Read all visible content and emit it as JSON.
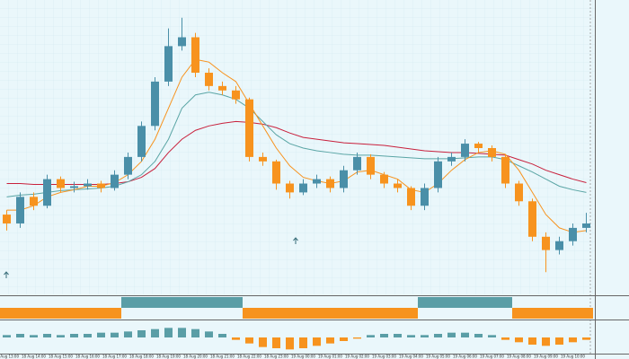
{
  "chart_data": {
    "type": "candlestick",
    "categories": [
      "18 Aug 13:00",
      null,
      "18 Aug 14:00",
      null,
      "18 Aug 15:00",
      null,
      "18 Aug 16:00",
      null,
      "18 Aug 17:00",
      null,
      "18 Aug 18:00",
      null,
      "18 Aug 19:00",
      null,
      "18 Aug 20:00",
      null,
      "18 Aug 21:00",
      null,
      "18 Aug 22:00",
      null,
      "18 Aug 23:00",
      null,
      "19 Aug 00:00",
      null,
      "19 Aug 01:00",
      null,
      "19 Aug 02:00",
      null,
      "19 Aug 03:00",
      null,
      "19 Aug 04:00",
      null,
      "19 Aug 05:00",
      null,
      "19 Aug 06:00",
      null,
      "19 Aug 07:00",
      null,
      "19 Aug 08:00",
      null,
      "19 Aug 09:00",
      null,
      "19 Aug 10:00",
      null
    ],
    "open": [
      90,
      80,
      110,
      100,
      130,
      120,
      122,
      125,
      120,
      135,
      155,
      190,
      240,
      280,
      290,
      250,
      235,
      230,
      220,
      155,
      150,
      125,
      115,
      125,
      130,
      120,
      140,
      155,
      135,
      125,
      120,
      100,
      120,
      150,
      155,
      170,
      165,
      155,
      125,
      105,
      65,
      50,
      60,
      75
    ],
    "high": [
      95,
      115,
      115,
      135,
      133,
      127,
      130,
      128,
      140,
      160,
      195,
      245,
      300,
      312,
      295,
      255,
      240,
      235,
      222,
      160,
      152,
      128,
      130,
      135,
      133,
      145,
      160,
      158,
      138,
      130,
      122,
      125,
      155,
      160,
      175,
      172,
      168,
      158,
      128,
      108,
      70,
      65,
      80,
      92
    ],
    "low": [
      72,
      75,
      95,
      97,
      115,
      115,
      118,
      115,
      117,
      130,
      150,
      185,
      235,
      275,
      245,
      230,
      225,
      215,
      150,
      145,
      118,
      108,
      112,
      120,
      115,
      115,
      135,
      130,
      120,
      115,
      95,
      95,
      115,
      145,
      150,
      160,
      150,
      120,
      100,
      60,
      25,
      45,
      55,
      70
    ],
    "close": [
      80,
      110,
      100,
      130,
      120,
      122,
      125,
      120,
      135,
      155,
      190,
      240,
      280,
      290,
      250,
      235,
      230,
      220,
      155,
      150,
      125,
      115,
      125,
      130,
      120,
      140,
      155,
      135,
      125,
      120,
      100,
      120,
      150,
      155,
      170,
      165,
      155,
      125,
      105,
      65,
      50,
      60,
      75,
      80
    ],
    "up_color": "#4a8fa8",
    "down_color": "#f7931e",
    "ylim": [
      0,
      330
    ],
    "series": [
      {
        "color": "#c8203c",
        "values": [
          125,
          125,
          124,
          124,
          124,
          124,
          124,
          124,
          125,
          127,
          132,
          142,
          160,
          175,
          185,
          190,
          193,
          195,
          194,
          192,
          188,
          182,
          177,
          175,
          173,
          171,
          170,
          169,
          168,
          166,
          164,
          162,
          161,
          160,
          160,
          159,
          158,
          157,
          152,
          147,
          140,
          135,
          130,
          126
        ]
      },
      {
        "color": "#5aa5a5",
        "values": [
          110,
          112,
          113,
          115,
          117,
          118,
          119,
          120,
          122,
          127,
          135,
          150,
          175,
          210,
          225,
          228,
          225,
          220,
          210,
          195,
          180,
          170,
          165,
          162,
          160,
          158,
          157,
          157,
          156,
          155,
          154,
          153,
          153,
          153,
          154,
          155,
          155,
          152,
          145,
          138,
          130,
          122,
          118,
          115
        ]
      },
      {
        "color": "#f7931e",
        "values": [
          95,
          95,
          100,
          110,
          115,
          118,
          122,
          122,
          126,
          135,
          150,
          175,
          210,
          245,
          265,
          262,
          250,
          240,
          215,
          190,
          165,
          145,
          132,
          128,
          125,
          128,
          138,
          140,
          135,
          130,
          118,
          115,
          125,
          140,
          152,
          160,
          162,
          158,
          140,
          115,
          90,
          75,
          70,
          72
        ]
      }
    ],
    "signal": {
      "values": [
        -1,
        -1,
        -1,
        -1,
        -1,
        -1,
        -1,
        -1,
        -1,
        1,
        1,
        1,
        1,
        1,
        1,
        1,
        1,
        1,
        -1,
        -1,
        -1,
        -1,
        -1,
        -1,
        -1,
        -1,
        -1,
        -1,
        -1,
        -1,
        -1,
        1,
        1,
        1,
        1,
        1,
        1,
        1,
        -1,
        -1,
        -1,
        -1,
        -1,
        -1
      ],
      "up_color": "#5a9ea6",
      "down_color": "#f7931e"
    },
    "histogram": {
      "values": [
        2,
        3,
        2,
        3,
        2,
        3,
        3,
        4,
        4,
        5,
        6,
        7,
        8,
        8,
        7,
        5,
        3,
        -2,
        -5,
        -8,
        -9,
        -10,
        -9,
        -7,
        -5,
        -3,
        -1,
        2,
        3,
        3,
        2,
        2,
        3,
        4,
        4,
        3,
        2,
        -2,
        -4,
        -6,
        -7,
        -6,
        -4,
        -2
      ],
      "ylim": [
        -12,
        12
      ],
      "up_color": "#5a9ea6",
      "down_color": "#f7931e"
    }
  }
}
